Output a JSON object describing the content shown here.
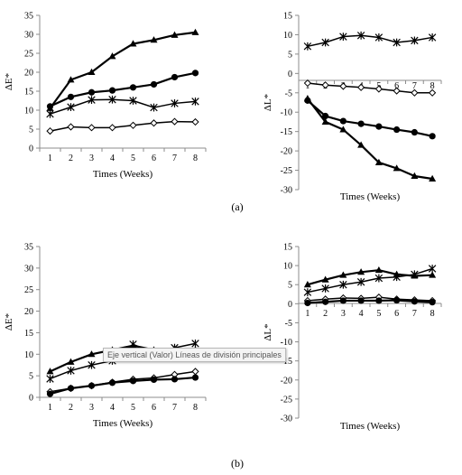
{
  "panel_labels": {
    "a": "(a)",
    "b": "(b)"
  },
  "tooltip": "Eje vertical (Valor) Líneas de división principales",
  "chart_data": [
    {
      "id": "a-dE",
      "type": "line",
      "xlabel": "Times (Weeks)",
      "ylabel": "ΔE*",
      "x": [
        1,
        2,
        3,
        4,
        5,
        6,
        7,
        8
      ],
      "ylim": [
        0,
        35
      ],
      "yticks": [
        0,
        5,
        10,
        15,
        20,
        25,
        30,
        35
      ],
      "grid": false,
      "series": [
        {
          "marker": "triangle",
          "values": [
            10.5,
            18,
            20,
            24.2,
            27.5,
            28.5,
            29.8,
            30.5
          ]
        },
        {
          "marker": "circle",
          "values": [
            11,
            13.5,
            14.7,
            15.2,
            16,
            16.8,
            18.7,
            19.8
          ]
        },
        {
          "marker": "star",
          "values": [
            9,
            10.8,
            12.7,
            12.8,
            12.5,
            10.7,
            11.8,
            12.3
          ]
        },
        {
          "marker": "diamond",
          "values": [
            4.5,
            5.6,
            5.4,
            5.4,
            6,
            6.6,
            7,
            6.9
          ]
        }
      ]
    },
    {
      "id": "a-dL",
      "type": "line",
      "xlabel": "Times (Weeks)",
      "ylabel": "ΔL*",
      "x": [
        1,
        2,
        3,
        4,
        5,
        6,
        7,
        8
      ],
      "ylim": [
        -30,
        15
      ],
      "yticks": [
        15,
        10,
        5,
        0,
        -5,
        -10,
        -15,
        -20,
        -25,
        -30
      ],
      "grid": false,
      "series": [
        {
          "marker": "star",
          "values": [
            7,
            8,
            9.5,
            9.8,
            9.3,
            8,
            8.5,
            9.3
          ]
        },
        {
          "marker": "diamond",
          "values": [
            -2.5,
            -3,
            -3.3,
            -3.6,
            -4,
            -4.5,
            -5,
            -5
          ]
        },
        {
          "marker": "circle",
          "values": [
            -7,
            -11,
            -12.3,
            -13,
            -13.7,
            -14.5,
            -15.2,
            -16.2
          ]
        },
        {
          "marker": "triangle",
          "values": [
            -6.5,
            -12.5,
            -14.5,
            -18.5,
            -23,
            -24.5,
            -26.5,
            -27.2
          ]
        }
      ]
    },
    {
      "id": "b-dE",
      "type": "line",
      "xlabel": "Times (Weeks)",
      "ylabel": "ΔE*",
      "x": [
        1,
        2,
        3,
        4,
        5,
        6,
        7,
        8
      ],
      "ylim": [
        0,
        35
      ],
      "yticks": [
        0,
        5,
        10,
        15,
        20,
        25,
        30,
        35
      ],
      "grid": false,
      "series": [
        {
          "marker": "triangle",
          "values": [
            6,
            8.2,
            10,
            11,
            12,
            11,
            11,
            11
          ]
        },
        {
          "marker": "star",
          "values": [
            4.3,
            6.2,
            7.5,
            8.5,
            12.3,
            10.3,
            11.5,
            12.5
          ]
        },
        {
          "marker": "diamond",
          "values": [
            1.3,
            2.1,
            2.7,
            3.5,
            4.2,
            4.5,
            5.3,
            6
          ]
        },
        {
          "marker": "circle",
          "values": [
            0.8,
            2.1,
            2.7,
            3.4,
            3.8,
            4.1,
            4.2,
            4.6
          ]
        }
      ]
    },
    {
      "id": "b-dL",
      "type": "line",
      "xlabel": "Times (Weeks)",
      "ylabel": "ΔL*",
      "x": [
        1,
        2,
        3,
        4,
        5,
        6,
        7,
        8
      ],
      "ylim": [
        -30,
        15
      ],
      "yticks": [
        15,
        10,
        5,
        0,
        -5,
        -10,
        -15,
        -20,
        -25,
        -30
      ],
      "grid": false,
      "series": [
        {
          "marker": "triangle",
          "values": [
            5,
            6.3,
            7.5,
            8.3,
            8.8,
            7.7,
            7.3,
            7.5
          ]
        },
        {
          "marker": "star",
          "values": [
            3,
            4,
            5,
            5.7,
            6.7,
            7,
            7.7,
            9.2
          ]
        },
        {
          "marker": "diamond",
          "values": [
            0.8,
            1.2,
            1.5,
            1.4,
            1.7,
            1.2,
            1,
            0.8
          ]
        },
        {
          "marker": "circle",
          "values": [
            0.2,
            0.5,
            0.8,
            0.8,
            0.8,
            0.9,
            0.6,
            0.4
          ]
        }
      ]
    }
  ]
}
